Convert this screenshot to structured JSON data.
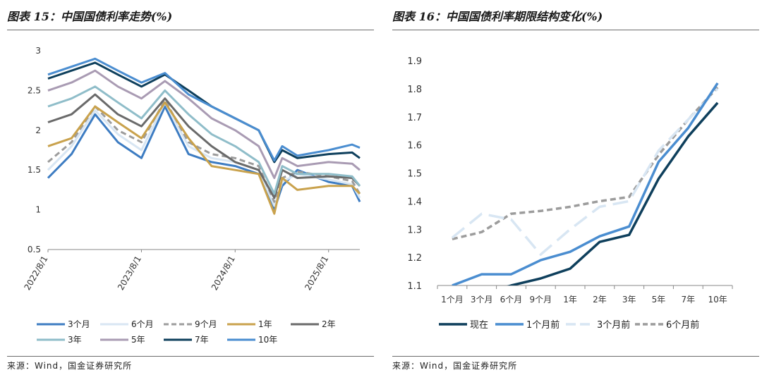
{
  "left_panel": {
    "title": "图表 15：中国国债利率走势(%)",
    "source": "来源：Wind，国金证券研究所"
  },
  "right_panel": {
    "title": "图表 16：中国国债利率期限结构变化(%)",
    "source": "来源：Wind，国金证券研究所"
  },
  "chart_data": [
    {
      "type": "line",
      "title": "图表 15：中国国债利率走势(%)",
      "xlabel": "",
      "ylabel": "",
      "x_ticks": [
        "2022/8/1",
        "2023/8/1",
        "2024/8/1",
        "2025/8/1"
      ],
      "x_range": [
        "2022/8/1",
        "2025/12/1"
      ],
      "y_ticks": [
        "0.5",
        "1",
        "1.5",
        "2",
        "2.5",
        "3"
      ],
      "ylim": [
        0.5,
        3
      ],
      "grid": false,
      "legend_position": "bottom",
      "series": [
        {
          "name": "3个月",
          "color": "#3d7cc2",
          "dash": "solid",
          "x": [
            "2022/8/1",
            "2022/11/1",
            "2023/2/1",
            "2023/5/1",
            "2023/8/1",
            "2023/11/1",
            "2024/2/1",
            "2024/5/1",
            "2024/8/1",
            "2024/11/1",
            "2025/1/1",
            "2025/2/1",
            "2025/4/1",
            "2025/8/1",
            "2025/11/1",
            "2025/12/1"
          ],
          "values": [
            1.4,
            1.7,
            2.2,
            1.85,
            1.65,
            2.3,
            1.7,
            1.6,
            1.55,
            1.45,
            1.0,
            1.3,
            1.5,
            1.35,
            1.3,
            1.1
          ]
        },
        {
          "name": "6个月",
          "color": "#d8e6f3",
          "dash": "solid",
          "x": [
            "2022/8/1",
            "2022/11/1",
            "2023/2/1",
            "2023/5/1",
            "2023/8/1",
            "2023/11/1",
            "2024/2/1",
            "2024/5/1",
            "2024/8/1",
            "2024/11/1",
            "2025/1/1",
            "2025/2/1",
            "2025/4/1",
            "2025/8/1",
            "2025/11/1",
            "2025/12/1"
          ],
          "values": [
            1.5,
            1.8,
            2.25,
            1.95,
            1.75,
            2.35,
            1.8,
            1.65,
            1.6,
            1.5,
            1.05,
            1.35,
            1.45,
            1.38,
            1.32,
            1.15
          ]
        },
        {
          "name": "9个月",
          "color": "#9c9c9c",
          "dash": "dash",
          "x": [
            "2022/8/1",
            "2022/11/1",
            "2023/2/1",
            "2023/5/1",
            "2023/8/1",
            "2023/11/1",
            "2024/2/1",
            "2024/5/1",
            "2024/8/1",
            "2024/11/1",
            "2025/1/1",
            "2025/2/1",
            "2025/4/1",
            "2025/8/1",
            "2025/11/1",
            "2025/12/1"
          ],
          "values": [
            1.6,
            1.85,
            2.3,
            2.0,
            1.85,
            2.38,
            1.85,
            1.7,
            1.65,
            1.55,
            1.1,
            1.4,
            1.48,
            1.42,
            1.36,
            1.2
          ]
        },
        {
          "name": "1年",
          "color": "#c9a24d",
          "dash": "solid",
          "x": [
            "2022/8/1",
            "2022/11/1",
            "2023/2/1",
            "2023/5/1",
            "2023/8/1",
            "2023/11/1",
            "2024/2/1",
            "2024/5/1",
            "2024/8/1",
            "2024/11/1",
            "2025/1/1",
            "2025/2/1",
            "2025/4/1",
            "2025/8/1",
            "2025/11/1",
            "2025/12/1"
          ],
          "values": [
            1.8,
            1.9,
            2.3,
            2.1,
            1.9,
            2.35,
            1.9,
            1.55,
            1.5,
            1.45,
            0.95,
            1.4,
            1.25,
            1.3,
            1.3,
            1.2
          ]
        },
        {
          "name": "2年",
          "color": "#6a6a6a",
          "dash": "solid",
          "x": [
            "2022/8/1",
            "2022/11/1",
            "2023/2/1",
            "2023/5/1",
            "2023/8/1",
            "2023/11/1",
            "2024/2/1",
            "2024/5/1",
            "2024/8/1",
            "2024/11/1",
            "2025/1/1",
            "2025/2/1",
            "2025/4/1",
            "2025/8/1",
            "2025/11/1",
            "2025/12/1"
          ],
          "values": [
            2.1,
            2.2,
            2.45,
            2.2,
            2.05,
            2.4,
            2.05,
            1.8,
            1.6,
            1.5,
            1.15,
            1.5,
            1.4,
            1.42,
            1.4,
            1.3
          ]
        },
        {
          "name": "3年",
          "color": "#8fbdc9",
          "dash": "solid",
          "x": [
            "2022/8/1",
            "2022/11/1",
            "2023/2/1",
            "2023/5/1",
            "2023/8/1",
            "2023/11/1",
            "2024/2/1",
            "2024/5/1",
            "2024/8/1",
            "2024/11/1",
            "2025/1/1",
            "2025/2/1",
            "2025/4/1",
            "2025/8/1",
            "2025/11/1",
            "2025/12/1"
          ],
          "values": [
            2.3,
            2.4,
            2.55,
            2.35,
            2.15,
            2.5,
            2.2,
            1.95,
            1.8,
            1.6,
            1.2,
            1.55,
            1.45,
            1.45,
            1.42,
            1.3
          ]
        },
        {
          "name": "5年",
          "color": "#a99bb3",
          "dash": "solid",
          "x": [
            "2022/8/1",
            "2022/11/1",
            "2023/2/1",
            "2023/5/1",
            "2023/8/1",
            "2023/11/1",
            "2024/2/1",
            "2024/5/1",
            "2024/8/1",
            "2024/11/1",
            "2025/1/1",
            "2025/2/1",
            "2025/4/1",
            "2025/8/1",
            "2025/11/1",
            "2025/12/1"
          ],
          "values": [
            2.5,
            2.6,
            2.75,
            2.55,
            2.4,
            2.62,
            2.4,
            2.15,
            2.0,
            1.8,
            1.4,
            1.65,
            1.55,
            1.6,
            1.58,
            1.5
          ]
        },
        {
          "name": "7年",
          "color": "#0e3f5c",
          "dash": "solid",
          "x": [
            "2022/8/1",
            "2022/11/1",
            "2023/2/1",
            "2023/5/1",
            "2023/8/1",
            "2023/11/1",
            "2024/2/1",
            "2024/5/1",
            "2024/8/1",
            "2024/11/1",
            "2025/1/1",
            "2025/2/1",
            "2025/4/1",
            "2025/8/1",
            "2025/11/1",
            "2025/12/1"
          ],
          "values": [
            2.65,
            2.75,
            2.85,
            2.7,
            2.55,
            2.7,
            2.5,
            2.3,
            2.15,
            2.0,
            1.6,
            1.75,
            1.65,
            1.7,
            1.72,
            1.65
          ]
        },
        {
          "name": "10年",
          "color": "#4a8dd0",
          "dash": "solid",
          "x": [
            "2022/8/1",
            "2022/11/1",
            "2023/2/1",
            "2023/5/1",
            "2023/8/1",
            "2023/11/1",
            "2024/2/1",
            "2024/5/1",
            "2024/8/1",
            "2024/11/1",
            "2025/1/1",
            "2025/2/1",
            "2025/4/1",
            "2025/8/1",
            "2025/11/1",
            "2025/12/1"
          ],
          "values": [
            2.7,
            2.8,
            2.9,
            2.75,
            2.6,
            2.72,
            2.45,
            2.3,
            2.15,
            2.0,
            1.62,
            1.8,
            1.68,
            1.75,
            1.82,
            1.78
          ]
        }
      ]
    },
    {
      "type": "line",
      "title": "图表 16：中国国债利率期限结构变化(%)",
      "xlabel": "",
      "ylabel": "",
      "categories": [
        "1个月",
        "3个月",
        "6个月",
        "9个月",
        "1年",
        "2年",
        "3年",
        "5年",
        "7年",
        "10年"
      ],
      "y_ticks": [
        "1.1",
        "1.2",
        "1.3",
        "1.4",
        "1.5",
        "1.6",
        "1.7",
        "1.8",
        "1.9"
      ],
      "ylim": [
        1.1,
        1.9
      ],
      "grid": false,
      "legend_position": "bottom",
      "series": [
        {
          "name": "现在",
          "color": "#0e3f5c",
          "dash": "solid",
          "values": [
            1.05,
            1.07,
            1.1,
            1.125,
            1.16,
            1.255,
            1.28,
            1.48,
            1.63,
            1.75
          ]
        },
        {
          "name": "1个月前",
          "color": "#4a8dd0",
          "dash": "solid",
          "values": [
            1.1,
            1.14,
            1.14,
            1.19,
            1.22,
            1.275,
            1.31,
            1.54,
            1.66,
            1.82
          ]
        },
        {
          "name": "3个月前",
          "color": "#d8e6f3",
          "dash": "longdash",
          "values": [
            1.27,
            1.355,
            1.335,
            1.21,
            1.3,
            1.38,
            1.4,
            1.58,
            1.69,
            1.8
          ]
        },
        {
          "name": "6个月前",
          "color": "#9c9c9c",
          "dash": "dash",
          "values": [
            1.265,
            1.29,
            1.355,
            1.365,
            1.38,
            1.4,
            1.415,
            1.565,
            1.69,
            1.805
          ]
        }
      ]
    }
  ]
}
